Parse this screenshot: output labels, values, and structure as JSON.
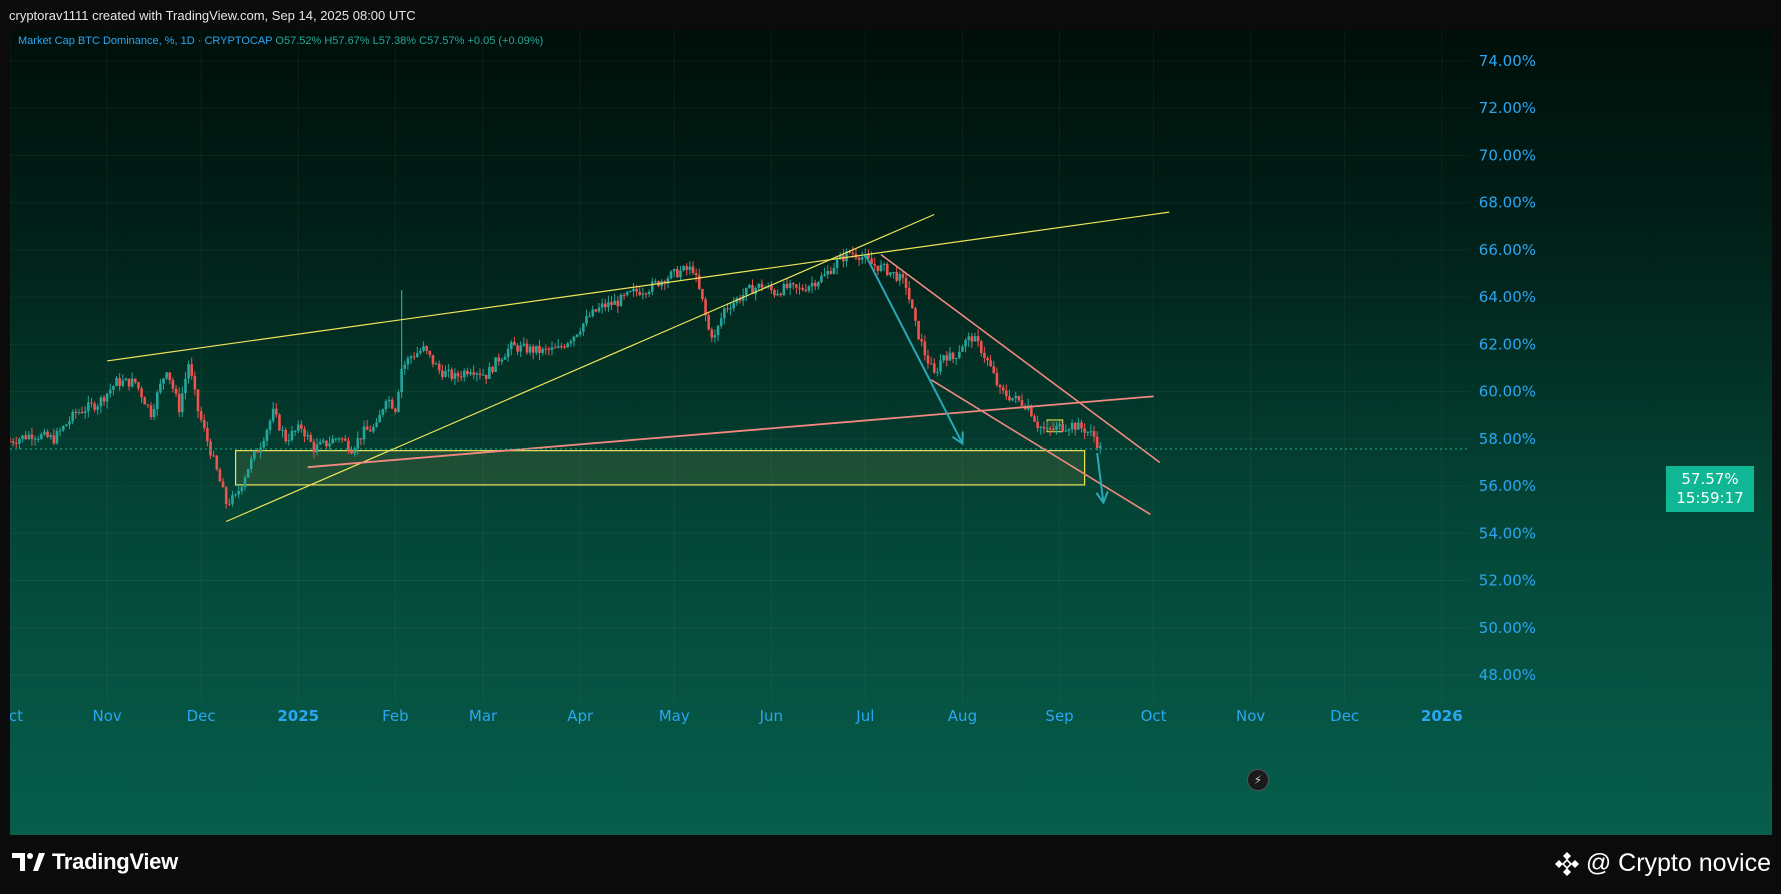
{
  "header": {
    "credit_line": "cryptorav1111 created with TradingView.com, Sep 14, 2025 08:00 UTC"
  },
  "symbol": {
    "name": "Market Cap BTC Dominance, %",
    "interval": "1D",
    "exchange": "CRYPTOCAP",
    "open": "O57.52%",
    "high": "H57.67%",
    "low": "L57.38%",
    "close": "C57.57%",
    "change": "+0.05 (+0.09%)"
  },
  "price_badge": {
    "price": "57.57%",
    "countdown": "15:59:17"
  },
  "footer": {
    "brand": "TradingView",
    "watermark": "@ Crypto novice"
  },
  "colors": {
    "up": "#26a69a",
    "down": "#ef5350",
    "axis_text": "#2aa6f2",
    "trendline": "#f0e35a",
    "channel": "#f08a80",
    "arrow": "#29a9b8",
    "badge": "#10b795"
  },
  "icons": [
    "tradingview-logo-icon",
    "binance-diamond-icon",
    "bolt-icon"
  ],
  "chart_data": {
    "type": "candlestick",
    "title": "Market Cap BTC Dominance, %",
    "y_axis": {
      "min": 47,
      "max": 75.5,
      "ticks": [
        "74.00%",
        "72.00%",
        "70.00%",
        "68.00%",
        "66.00%",
        "64.00%",
        "62.00%",
        "60.00%",
        "58.00%",
        "56.00%",
        "54.00%",
        "52.00%",
        "50.00%",
        "48.00%"
      ],
      "tick_values": [
        74,
        72,
        70,
        68,
        66,
        64,
        62,
        60,
        58,
        56,
        54,
        52,
        50,
        48
      ]
    },
    "x_axis": {
      "start": "2024-10-01",
      "end": "2026-01-10",
      "ticks": [
        {
          "date": "2024-10-01",
          "label": "Oct",
          "bold": false
        },
        {
          "date": "2024-11-01",
          "label": "Nov",
          "bold": false
        },
        {
          "date": "2024-12-01",
          "label": "Dec",
          "bold": false
        },
        {
          "date": "2025-01-01",
          "label": "2025",
          "bold": true
        },
        {
          "date": "2025-02-01",
          "label": "Feb",
          "bold": false
        },
        {
          "date": "2025-03-01",
          "label": "Mar",
          "bold": false
        },
        {
          "date": "2025-04-01",
          "label": "Apr",
          "bold": false
        },
        {
          "date": "2025-05-01",
          "label": "May",
          "bold": false
        },
        {
          "date": "2025-06-01",
          "label": "Jun",
          "bold": false
        },
        {
          "date": "2025-07-01",
          "label": "Jul",
          "bold": false
        },
        {
          "date": "2025-08-01",
          "label": "Aug",
          "bold": false
        },
        {
          "date": "2025-09-01",
          "label": "Sep",
          "bold": false
        },
        {
          "date": "2025-10-01",
          "label": "Oct",
          "bold": false
        },
        {
          "date": "2025-11-01",
          "label": "Nov",
          "bold": false
        },
        {
          "date": "2025-12-01",
          "label": "Dec",
          "bold": false
        },
        {
          "date": "2026-01-01",
          "label": "2026",
          "bold": true
        }
      ]
    },
    "grid": true,
    "last_price": 57.57,
    "close_path": [
      [
        "2024-10-01",
        57.9
      ],
      [
        "2024-10-08",
        58.2
      ],
      [
        "2024-10-15",
        58.0
      ],
      [
        "2024-10-22",
        59.1
      ],
      [
        "2024-10-29",
        59.5
      ],
      [
        "2024-11-04",
        60.4
      ],
      [
        "2024-11-10",
        60.4
      ],
      [
        "2024-11-15",
        59.1
      ],
      [
        "2024-11-20",
        61.0
      ],
      [
        "2024-11-24",
        59.3
      ],
      [
        "2024-11-27",
        61.2
      ],
      [
        "2024-11-30",
        59.2
      ],
      [
        "2024-12-04",
        57.5
      ],
      [
        "2024-12-09",
        55.3
      ],
      [
        "2024-12-12",
        55.5
      ],
      [
        "2024-12-16",
        56.8
      ],
      [
        "2024-12-20",
        57.8
      ],
      [
        "2024-12-24",
        59.1
      ],
      [
        "2024-12-28",
        58.0
      ],
      [
        "2025-01-02",
        58.5
      ],
      [
        "2025-01-06",
        57.6
      ],
      [
        "2025-01-10",
        57.8
      ],
      [
        "2025-01-14",
        58.1
      ],
      [
        "2025-01-18",
        57.6
      ],
      [
        "2025-01-22",
        58.3
      ],
      [
        "2025-01-26",
        58.5
      ],
      [
        "2025-01-29",
        59.8
      ],
      [
        "2025-02-01",
        59.3
      ],
      [
        "2025-02-03",
        61.0
      ],
      [
        "2025-02-06",
        61.5
      ],
      [
        "2025-02-10",
        61.8
      ],
      [
        "2025-02-15",
        60.9
      ],
      [
        "2025-02-20",
        60.6
      ],
      [
        "2025-02-25",
        61.0
      ],
      [
        "2025-03-02",
        60.7
      ],
      [
        "2025-03-06",
        61.4
      ],
      [
        "2025-03-10",
        61.9
      ],
      [
        "2025-03-15",
        61.8
      ],
      [
        "2025-03-20",
        61.7
      ],
      [
        "2025-03-25",
        61.8
      ],
      [
        "2025-03-30",
        62.4
      ],
      [
        "2025-04-04",
        63.2
      ],
      [
        "2025-04-08",
        63.6
      ],
      [
        "2025-04-13",
        63.8
      ],
      [
        "2025-04-18",
        64.2
      ],
      [
        "2025-04-23",
        64.4
      ],
      [
        "2025-04-28",
        64.8
      ],
      [
        "2025-05-03",
        65.1
      ],
      [
        "2025-05-07",
        65.2
      ],
      [
        "2025-05-10",
        63.8
      ],
      [
        "2025-05-12",
        62.6
      ],
      [
        "2025-05-14",
        62.3
      ],
      [
        "2025-05-17",
        63.5
      ],
      [
        "2025-05-21",
        63.9
      ],
      [
        "2025-05-25",
        64.3
      ],
      [
        "2025-05-29",
        64.5
      ],
      [
        "2025-06-02",
        64.2
      ],
      [
        "2025-06-06",
        64.4
      ],
      [
        "2025-06-10",
        64.3
      ],
      [
        "2025-06-14",
        64.6
      ],
      [
        "2025-06-18",
        64.9
      ],
      [
        "2025-06-22",
        65.5
      ],
      [
        "2025-06-26",
        65.9
      ],
      [
        "2025-06-29",
        65.8
      ],
      [
        "2025-07-03",
        65.4
      ],
      [
        "2025-07-07",
        65.2
      ],
      [
        "2025-07-11",
        64.9
      ],
      [
        "2025-07-14",
        64.5
      ],
      [
        "2025-07-17",
        62.8
      ],
      [
        "2025-07-20",
        61.6
      ],
      [
        "2025-07-23",
        60.7
      ],
      [
        "2025-07-26",
        61.6
      ],
      [
        "2025-07-29",
        61.4
      ],
      [
        "2025-08-01",
        62.0
      ],
      [
        "2025-08-04",
        62.3
      ],
      [
        "2025-08-07",
        61.8
      ],
      [
        "2025-08-10",
        61.0
      ],
      [
        "2025-08-13",
        60.0
      ],
      [
        "2025-08-16",
        59.8
      ],
      [
        "2025-08-19",
        59.6
      ],
      [
        "2025-08-22",
        59.4
      ],
      [
        "2025-08-25",
        58.6
      ],
      [
        "2025-08-28",
        58.3
      ],
      [
        "2025-09-01",
        58.5
      ],
      [
        "2025-09-05",
        58.6
      ],
      [
        "2025-09-09",
        58.4
      ],
      [
        "2025-09-12",
        58.1
      ],
      [
        "2025-09-14",
        57.57
      ]
    ],
    "drawings": {
      "upper_trendline": {
        "from": [
          "2024-11-01",
          61.3
        ],
        "to": [
          "2025-10-06",
          67.6
        ]
      },
      "rising_trendline": {
        "from": [
          "2024-12-09",
          54.5
        ],
        "to": [
          "2025-07-23",
          67.5
        ]
      },
      "neckline": {
        "from": [
          "2025-01-04",
          56.8
        ],
        "to": [
          "2025-10-01",
          59.8
        ]
      },
      "channel_upper": {
        "from": [
          "2025-07-06",
          65.8
        ],
        "to": [
          "2025-10-03",
          57.0
        ]
      },
      "channel_lower": {
        "from": [
          "2025-07-22",
          60.5
        ],
        "to": [
          "2025-09-30",
          54.8
        ]
      },
      "support_zone": {
        "from": "2024-12-12",
        "to": "2025-09-09",
        "top": 57.5,
        "bottom": 56.05
      },
      "small_box": {
        "from": "2025-08-28",
        "to": "2025-09-02",
        "top": 58.8,
        "bottom": 58.3
      },
      "arrows": [
        {
          "from": [
            "2025-07-01",
            65.8
          ],
          "to": [
            "2025-08-01",
            57.8
          ]
        },
        {
          "from": [
            "2025-09-13",
            57.4
          ],
          "to": [
            "2025-09-15",
            55.3
          ]
        }
      ]
    }
  }
}
